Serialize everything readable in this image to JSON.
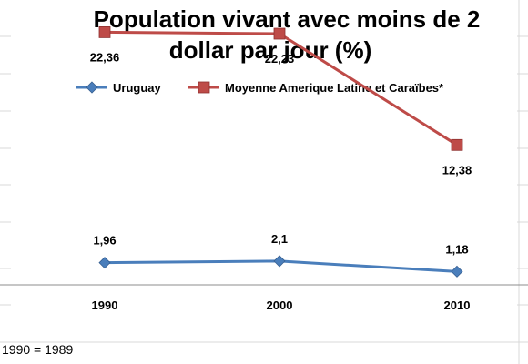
{
  "chart_data": {
    "type": "line",
    "title_lines": [
      "Population  vivant avec moins de 2",
      "dollar par jour (%)"
    ],
    "categories": [
      "1990",
      "2000",
      "2010"
    ],
    "series": [
      {
        "name": "Uruguay",
        "values": [
          1.96,
          2.1,
          1.18
        ],
        "labels": [
          "1,96",
          "2,1",
          "1,18"
        ],
        "color": "#4a7ebb",
        "marker": "diamond"
      },
      {
        "name": "Moyenne Amerique Latine et Caraïbes*",
        "values": [
          22.36,
          22.23,
          12.38
        ],
        "labels": [
          "22,36",
          "22,23",
          "12,38"
        ],
        "color": "#be4b48",
        "marker": "square"
      }
    ],
    "ylim": [
      0,
      25
    ],
    "legend_position": "top",
    "footnote": "1990 = 1989",
    "grid": "spreadsheet-cells"
  }
}
